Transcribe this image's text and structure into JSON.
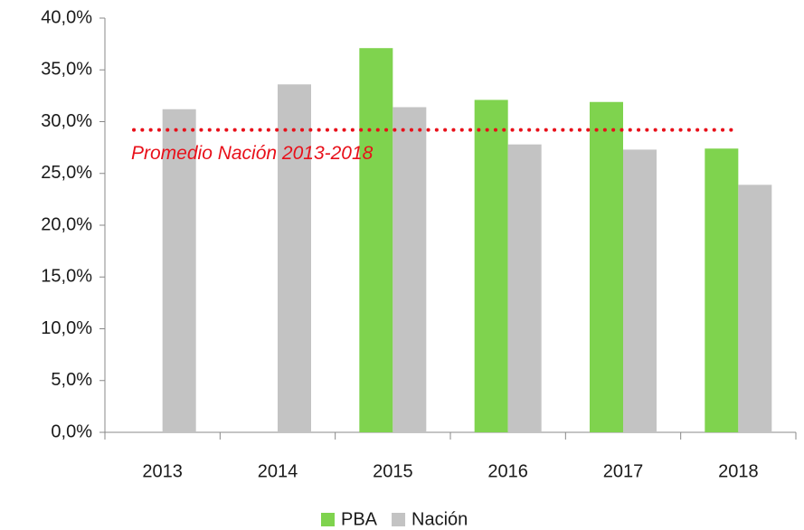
{
  "chart_data": {
    "type": "bar",
    "categories": [
      "2013",
      "2014",
      "2015",
      "2016",
      "2017",
      "2018"
    ],
    "series": [
      {
        "name": "PBA",
        "color": "#7fd34e",
        "values": [
          null,
          null,
          37.1,
          32.1,
          31.9,
          27.4
        ]
      },
      {
        "name": "Nación",
        "color": "#c3c3c3",
        "values": [
          31.2,
          33.6,
          31.4,
          27.8,
          27.3,
          23.9
        ]
      }
    ],
    "ylim": [
      0,
      40
    ],
    "yticks": [
      {
        "value": 0,
        "label": "0,0%"
      },
      {
        "value": 5,
        "label": "5,0%"
      },
      {
        "value": 10,
        "label": "10,0%"
      },
      {
        "value": 15,
        "label": "15,0%"
      },
      {
        "value": 20,
        "label": "20,0%"
      },
      {
        "value": 25,
        "label": "25,0%"
      },
      {
        "value": 30,
        "label": "30,0%"
      },
      {
        "value": 35,
        "label": "35,0%"
      },
      {
        "value": 40,
        "label": "40,0%"
      }
    ],
    "average_line": {
      "value": 29.2,
      "label": "Promedio Nación 2013-2018",
      "color": "#e8101a"
    },
    "legend": "bottom"
  }
}
